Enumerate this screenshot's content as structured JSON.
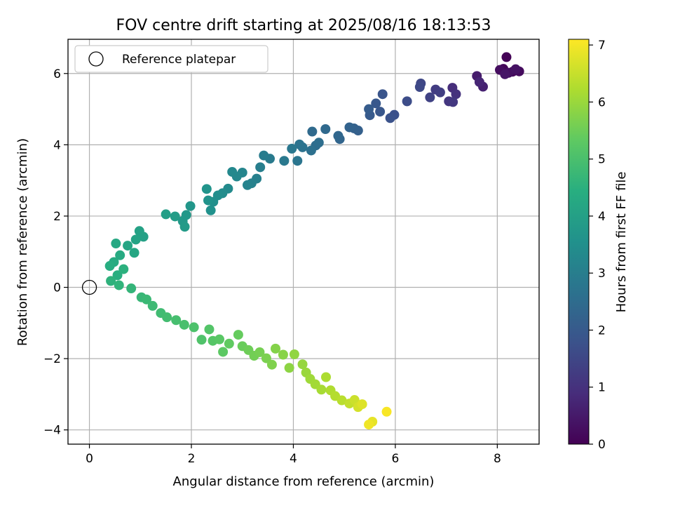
{
  "chart_data": {
    "type": "scatter",
    "title": "FOV centre drift starting at 2025/08/16 18:13:53",
    "xlabel": "Angular distance from reference (arcmin)",
    "ylabel": "Rotation from reference (arcmin)",
    "xlim": [
      -0.42,
      8.82
    ],
    "ylim": [
      -4.4,
      6.96
    ],
    "xticks": [
      0,
      2,
      4,
      6,
      8
    ],
    "yticks": [
      -4,
      -2,
      0,
      2,
      4,
      6
    ],
    "grid": true,
    "legend": {
      "placement": "top-left",
      "entries": [
        "Reference platepar"
      ]
    },
    "reference_point": {
      "label": "Reference platepar",
      "x": 0,
      "y": 0
    },
    "colorbar": {
      "label": "Hours from first FF file",
      "colormap": "viridis",
      "range": [
        0,
        7.1
      ],
      "ticks": [
        0,
        1,
        2,
        3,
        4,
        5,
        6,
        7
      ]
    },
    "series": [
      {
        "points": [
          [
            8.18,
            6.46,
            0.05
          ],
          [
            8.12,
            6.13,
            0.1
          ],
          [
            8.3,
            6.05,
            0.15
          ],
          [
            8.43,
            6.06,
            0.2
          ],
          [
            8.05,
            6.1,
            0.25
          ],
          [
            8.22,
            6.02,
            0.3
          ],
          [
            8.36,
            6.12,
            0.35
          ],
          [
            8.15,
            5.98,
            0.4
          ],
          [
            7.6,
            5.93,
            0.55
          ],
          [
            7.72,
            5.63,
            0.65
          ],
          [
            7.65,
            5.76,
            0.75
          ],
          [
            7.12,
            5.6,
            0.9
          ],
          [
            7.19,
            5.42,
            1.0
          ],
          [
            7.05,
            5.22,
            1.1
          ],
          [
            7.13,
            5.2,
            1.15
          ],
          [
            6.79,
            5.55,
            1.25
          ],
          [
            6.88,
            5.47,
            1.3
          ],
          [
            6.68,
            5.33,
            1.4
          ],
          [
            6.5,
            5.72,
            1.5
          ],
          [
            6.48,
            5.62,
            1.55
          ],
          [
            6.23,
            5.22,
            1.65
          ],
          [
            5.98,
            4.84,
            1.75
          ],
          [
            5.9,
            4.75,
            1.8
          ],
          [
            5.75,
            5.42,
            1.85
          ],
          [
            5.7,
            4.93,
            1.9
          ],
          [
            5.62,
            5.16,
            1.95
          ],
          [
            5.5,
            4.83,
            2.0
          ],
          [
            5.48,
            5.0,
            2.05
          ],
          [
            5.27,
            4.4,
            2.15
          ],
          [
            5.19,
            4.46,
            2.2
          ],
          [
            5.1,
            4.49,
            2.25
          ],
          [
            4.91,
            4.16,
            2.3
          ],
          [
            4.88,
            4.25,
            2.35
          ],
          [
            4.63,
            4.44,
            2.4
          ],
          [
            4.37,
            4.37,
            2.45
          ],
          [
            4.44,
            3.98,
            2.5
          ],
          [
            4.5,
            4.06,
            2.55
          ],
          [
            4.35,
            3.84,
            2.6
          ],
          [
            4.18,
            3.93,
            2.65
          ],
          [
            4.12,
            4.01,
            2.7
          ],
          [
            4.08,
            3.55,
            2.75
          ],
          [
            3.97,
            3.89,
            2.8
          ],
          [
            3.82,
            3.55,
            2.85
          ],
          [
            3.54,
            3.61,
            2.9
          ],
          [
            3.42,
            3.7,
            2.95
          ],
          [
            3.35,
            3.37,
            3.0
          ],
          [
            3.28,
            3.05,
            3.05
          ],
          [
            3.18,
            2.92,
            3.1
          ],
          [
            3.1,
            2.87,
            3.15
          ],
          [
            3.0,
            3.22,
            3.2
          ],
          [
            2.89,
            3.11,
            3.25
          ],
          [
            2.8,
            3.24,
            3.3
          ],
          [
            2.72,
            2.77,
            3.35
          ],
          [
            2.61,
            2.64,
            3.4
          ],
          [
            2.52,
            2.58,
            3.45
          ],
          [
            2.43,
            2.4,
            3.5
          ],
          [
            2.38,
            2.16,
            3.55
          ],
          [
            2.33,
            2.44,
            3.6
          ],
          [
            2.3,
            2.76,
            3.65
          ],
          [
            1.98,
            2.28,
            3.7
          ],
          [
            1.9,
            2.03,
            3.75
          ],
          [
            1.83,
            1.86,
            3.8
          ],
          [
            1.87,
            1.7,
            3.85
          ],
          [
            1.68,
            1.99,
            3.9
          ],
          [
            1.5,
            2.05,
            3.95
          ],
          [
            1.06,
            1.42,
            4.0
          ],
          [
            0.98,
            1.58,
            4.05
          ],
          [
            0.91,
            1.34,
            4.1
          ],
          [
            0.75,
            1.17,
            4.15
          ],
          [
            0.88,
            0.97,
            4.2
          ],
          [
            0.52,
            1.23,
            4.25
          ],
          [
            0.6,
            0.9,
            4.3
          ],
          [
            0.48,
            0.71,
            4.35
          ],
          [
            0.4,
            0.6,
            4.4
          ],
          [
            0.55,
            0.34,
            4.45
          ],
          [
            0.67,
            0.51,
            4.5
          ],
          [
            0.42,
            0.18,
            4.55
          ],
          [
            0.58,
            0.06,
            4.6
          ],
          [
            0.82,
            -0.03,
            4.65
          ],
          [
            1.02,
            -0.28,
            4.7
          ],
          [
            1.12,
            -0.34,
            4.75
          ],
          [
            1.24,
            -0.52,
            4.8
          ],
          [
            1.4,
            -0.72,
            4.85
          ],
          [
            1.52,
            -0.84,
            4.9
          ],
          [
            1.7,
            -0.92,
            4.95
          ],
          [
            1.86,
            -1.05,
            5.0
          ],
          [
            2.05,
            -1.12,
            5.05
          ],
          [
            2.2,
            -1.47,
            5.1
          ],
          [
            2.35,
            -1.18,
            5.15
          ],
          [
            2.42,
            -1.5,
            5.2
          ],
          [
            2.55,
            -1.46,
            5.25
          ],
          [
            2.62,
            -1.81,
            5.3
          ],
          [
            2.74,
            -1.58,
            5.35
          ],
          [
            2.92,
            -1.33,
            5.4
          ],
          [
            3.0,
            -1.65,
            5.45
          ],
          [
            3.12,
            -1.76,
            5.5
          ],
          [
            3.23,
            -1.92,
            5.55
          ],
          [
            3.34,
            -1.82,
            5.6
          ],
          [
            3.47,
            -1.99,
            5.65
          ],
          [
            3.58,
            -2.17,
            5.7
          ],
          [
            3.65,
            -1.72,
            5.75
          ],
          [
            3.8,
            -1.89,
            5.8
          ],
          [
            3.92,
            -2.26,
            5.85
          ],
          [
            4.02,
            -1.88,
            5.9
          ],
          [
            4.18,
            -2.16,
            5.95
          ],
          [
            4.25,
            -2.39,
            6.0
          ],
          [
            4.33,
            -2.57,
            6.05
          ],
          [
            4.43,
            -2.72,
            6.1
          ],
          [
            4.55,
            -2.87,
            6.15
          ],
          [
            4.64,
            -2.52,
            6.2
          ],
          [
            4.73,
            -2.89,
            6.25
          ],
          [
            4.82,
            -3.05,
            6.3
          ],
          [
            4.95,
            -3.17,
            6.35
          ],
          [
            5.1,
            -3.26,
            6.45
          ],
          [
            5.2,
            -3.16,
            6.55
          ],
          [
            5.27,
            -3.36,
            6.65
          ],
          [
            5.35,
            -3.28,
            6.75
          ],
          [
            5.55,
            -3.77,
            6.85
          ],
          [
            5.48,
            -3.85,
            6.95
          ],
          [
            5.83,
            -3.49,
            7.05
          ]
        ]
      }
    ]
  }
}
